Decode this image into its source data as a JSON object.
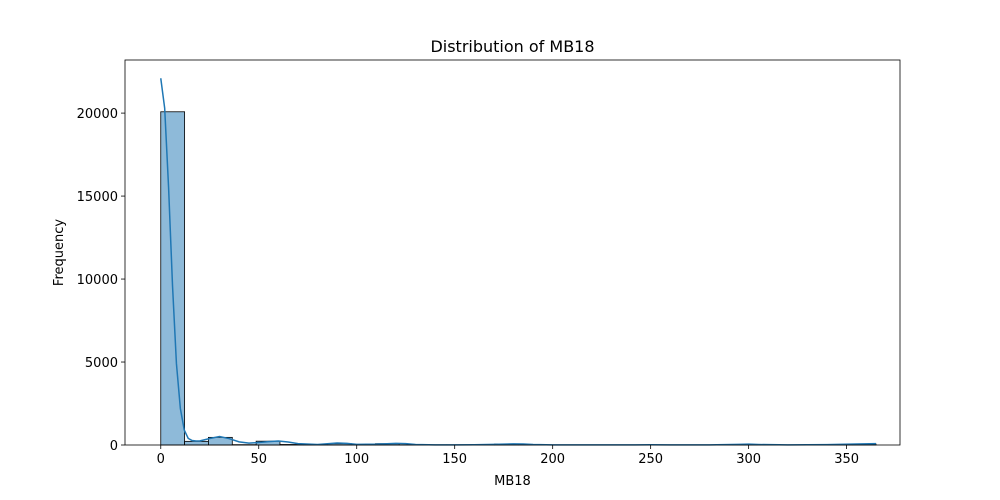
{
  "chart_data": {
    "type": "bar",
    "title": "Distribution of MB18",
    "xlabel": "MB18",
    "ylabel": "Frequency",
    "xlim": [
      -18.25,
      377.25
    ],
    "ylim": [
      0,
      23200
    ],
    "xticks": [
      0,
      50,
      100,
      150,
      200,
      250,
      300,
      350
    ],
    "yticks": [
      0,
      5000,
      10000,
      15000,
      20000
    ],
    "grid": false,
    "bin_width": 12.17,
    "bins": [
      {
        "x0": 0,
        "x1": 12.17,
        "count": 20080
      },
      {
        "x0": 12.17,
        "x1": 24.33,
        "count": 220
      },
      {
        "x0": 24.33,
        "x1": 36.5,
        "count": 460
      },
      {
        "x0": 36.5,
        "x1": 48.67,
        "count": 20
      },
      {
        "x0": 48.67,
        "x1": 60.83,
        "count": 230
      },
      {
        "x0": 60.83,
        "x1": 73.0,
        "count": 30
      },
      {
        "x0": 73.0,
        "x1": 85.17,
        "count": 10
      },
      {
        "x0": 85.17,
        "x1": 97.33,
        "count": 80
      },
      {
        "x0": 97.33,
        "x1": 109.5,
        "count": 10
      },
      {
        "x0": 109.5,
        "x1": 121.67,
        "count": 80
      },
      {
        "x0": 121.67,
        "x1": 133.83,
        "count": 10
      },
      {
        "x0": 133.83,
        "x1": 146.0,
        "count": 10
      },
      {
        "x0": 146.0,
        "x1": 158.17,
        "count": 10
      },
      {
        "x0": 158.17,
        "x1": 170.33,
        "count": 10
      },
      {
        "x0": 170.33,
        "x1": 182.5,
        "count": 60
      },
      {
        "x0": 182.5,
        "x1": 194.67,
        "count": 10
      },
      {
        "x0": 194.67,
        "x1": 206.83,
        "count": 5
      },
      {
        "x0": 206.83,
        "x1": 219.0,
        "count": 5
      },
      {
        "x0": 219.0,
        "x1": 231.17,
        "count": 5
      },
      {
        "x0": 231.17,
        "x1": 243.33,
        "count": 5
      },
      {
        "x0": 243.33,
        "x1": 255.5,
        "count": 5
      },
      {
        "x0": 255.5,
        "x1": 267.67,
        "count": 5
      },
      {
        "x0": 267.67,
        "x1": 279.83,
        "count": 5
      },
      {
        "x0": 279.83,
        "x1": 292.0,
        "count": 5
      },
      {
        "x0": 292.0,
        "x1": 304.17,
        "count": 30
      },
      {
        "x0": 304.17,
        "x1": 316.33,
        "count": 5
      },
      {
        "x0": 316.33,
        "x1": 328.5,
        "count": 5
      },
      {
        "x0": 328.5,
        "x1": 340.67,
        "count": 5
      },
      {
        "x0": 340.67,
        "x1": 352.83,
        "count": 5
      },
      {
        "x0": 352.83,
        "x1": 365.0,
        "count": 60
      }
    ],
    "kde": {
      "x": [
        0,
        2,
        4,
        6,
        8,
        10,
        12,
        14,
        16,
        18,
        20,
        25,
        30,
        35,
        40,
        45,
        50,
        55,
        60,
        65,
        70,
        80,
        90,
        95,
        100,
        110,
        120,
        125,
        130,
        140,
        150,
        160,
        170,
        180,
        185,
        190,
        200,
        220,
        240,
        250,
        260,
        280,
        295,
        300,
        305,
        320,
        340,
        355,
        365
      ],
      "y": [
        22100,
        20300,
        15500,
        9600,
        4900,
        2200,
        900,
        400,
        270,
        240,
        250,
        390,
        510,
        380,
        190,
        110,
        150,
        200,
        240,
        180,
        80,
        30,
        120,
        100,
        40,
        50,
        100,
        80,
        30,
        10,
        10,
        15,
        40,
        70,
        60,
        30,
        10,
        5,
        5,
        15,
        10,
        5,
        40,
        50,
        30,
        5,
        20,
        60,
        80
      ]
    },
    "colors": {
      "bar_fill": "#8ebad9",
      "bar_edge": "#000000",
      "kde_line": "#1f77b4",
      "axes": "#000000"
    }
  }
}
